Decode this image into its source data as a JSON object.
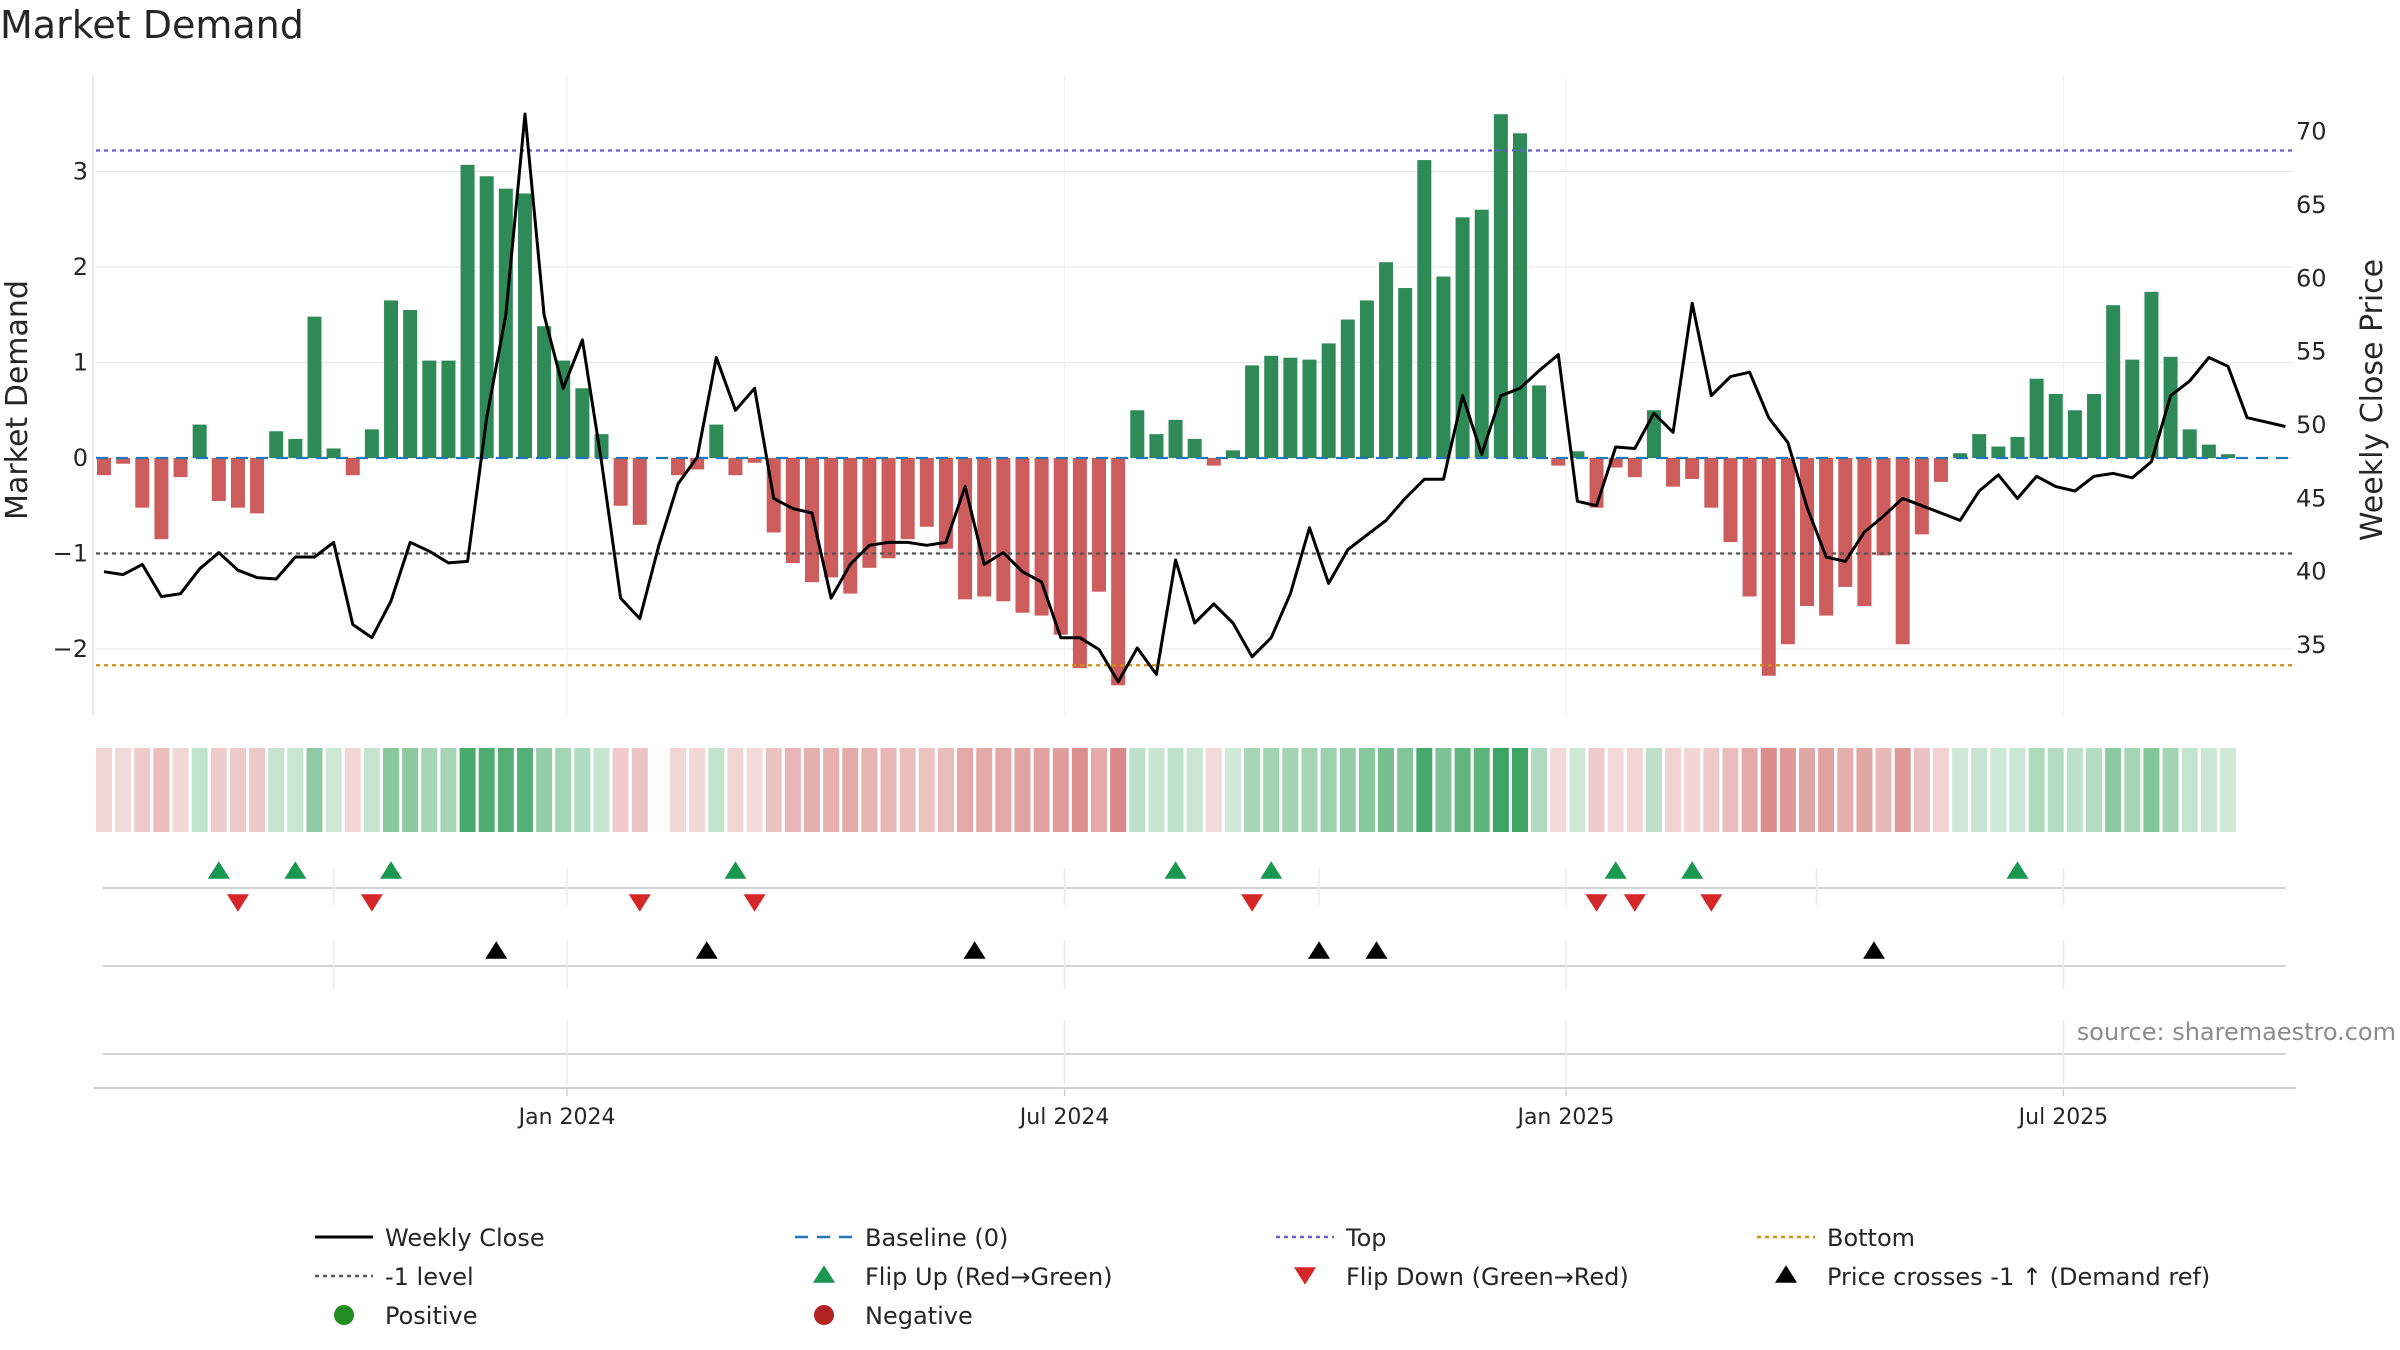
{
  "title": "Market Demand",
  "source": "source: sharemaestro.com",
  "colors": {
    "positive": "#2e8b57",
    "negative": "#cd5c5c",
    "price": "#000000",
    "baseline": "#1f77b4",
    "top": "#6a5acd",
    "bottom": "#d18f0b",
    "level": "#555555",
    "flip_up": "#1a9850",
    "flip_down": "#d62728",
    "cross": "#000000",
    "legend_pos": "#228b22",
    "legend_neg": "#b22222"
  },
  "chart_data": {
    "type": "bar",
    "title": "Market Demand",
    "ylabel": "Market Demand",
    "ylabel_right": "Weekly Close Price",
    "ylim": [
      -2.7,
      3.85
    ],
    "ylim_right": [
      31.5,
      73.0
    ],
    "yticks": [
      3,
      2,
      1,
      0,
      -1,
      -2
    ],
    "ytick_labels": [
      "3",
      "2",
      "1",
      "0",
      "−1",
      "−2"
    ],
    "yticks_right": [
      70,
      65,
      60,
      55,
      50,
      45,
      40,
      35
    ],
    "x_range": [
      0,
      115
    ],
    "x_ticks": [
      {
        "label": "Jan 2024",
        "pos": 24.2
      },
      {
        "label": "Jul 2024",
        "pos": 50.2
      },
      {
        "label": "Jan 2025",
        "pos": 76.4
      },
      {
        "label": "Jul 2025",
        "pos": 102.4
      }
    ],
    "top_level": 3.22,
    "bottom_level": -2.17,
    "minus_one_level": -1,
    "baseline": 0,
    "demand": [
      -0.18,
      -0.06,
      -0.52,
      -0.85,
      -0.2,
      0.35,
      -0.45,
      -0.52,
      -0.58,
      0.28,
      0.2,
      1.48,
      0.1,
      -0.18,
      0.3,
      1.65,
      1.55,
      1.02,
      1.02,
      3.07,
      2.95,
      2.82,
      2.77,
      1.38,
      1.02,
      0.73,
      0.25,
      -0.5,
      -0.7,
      0.0,
      -0.18,
      -0.12,
      0.35,
      -0.18,
      -0.05,
      -0.78,
      -1.1,
      -1.3,
      -1.25,
      -1.42,
      -1.15,
      -1.05,
      -0.85,
      -0.72,
      -0.95,
      -1.48,
      -1.45,
      -1.5,
      -1.62,
      -1.65,
      -1.85,
      -2.2,
      -1.4,
      -2.38,
      0.5,
      0.25,
      0.4,
      0.2,
      -0.08,
      0.08,
      0.97,
      1.07,
      1.05,
      1.03,
      1.2,
      1.45,
      1.65,
      2.05,
      1.78,
      3.12,
      1.9,
      2.52,
      2.6,
      3.6,
      3.4,
      0.76,
      -0.08,
      0.07,
      -0.52,
      -0.1,
      -0.2,
      0.5,
      -0.3,
      -0.22,
      -0.52,
      -0.88,
      -1.45,
      -2.28,
      -1.95,
      -1.55,
      -1.65,
      -1.35,
      -1.55,
      -1.02,
      -1.95,
      -0.8,
      -0.25,
      0.05,
      0.25,
      0.12,
      0.22,
      0.83,
      0.67,
      0.5,
      0.67,
      1.6,
      1.03,
      1.74,
      1.06,
      0.3,
      0.14,
      0.04
    ],
    "price": [
      40.0,
      39.8,
      40.5,
      38.3,
      38.5,
      40.2,
      41.3,
      40.1,
      39.6,
      39.5,
      41.0,
      41.0,
      42.0,
      36.4,
      35.5,
      38.0,
      42.0,
      41.4,
      40.6,
      40.7,
      50.5,
      57.5,
      71.2,
      57.5,
      52.5,
      55.8,
      47.5,
      38.2,
      36.8,
      41.8,
      46.0,
      47.8,
      54.6,
      51.0,
      52.5,
      45.0,
      44.3,
      44.0,
      38.2,
      40.5,
      41.8,
      42.0,
      42.0,
      41.8,
      42.0,
      45.8,
      40.5,
      41.3,
      40.0,
      39.3,
      35.5,
      35.5,
      34.7,
      32.5,
      34.8,
      33.0,
      40.8,
      36.5,
      37.8,
      36.5,
      34.2,
      35.5,
      38.5,
      43.0,
      39.2,
      41.5,
      42.5,
      43.5,
      45.0,
      46.3,
      46.3,
      52.0,
      48.0,
      52.0,
      52.5,
      53.7,
      54.8,
      44.8,
      44.5,
      48.5,
      48.4,
      50.8,
      49.5,
      58.3,
      52.0,
      53.3,
      53.6,
      50.5,
      48.8,
      44.4,
      41.0,
      40.7,
      42.7,
      43.8,
      45.0,
      44.5,
      44.0,
      43.5,
      45.5,
      46.6,
      45.0,
      46.5,
      45.8,
      45.5,
      46.5,
      46.7,
      46.4,
      47.5,
      52.0,
      53.0,
      54.6,
      54.0,
      50.5,
      50.2,
      49.9
    ],
    "heat_gap_index": 29,
    "flip_up": [
      6,
      10,
      15,
      33,
      56,
      61,
      79,
      83,
      100
    ],
    "flip_down": [
      7,
      14,
      28,
      34,
      60,
      78,
      80,
      84
    ],
    "price_crosses": [
      20.5,
      31.5,
      45.5,
      63.5,
      66.5,
      92.5
    ],
    "legend": [
      {
        "label": "Weekly Close",
        "style": "solid-line"
      },
      {
        "label": "Baseline (0)",
        "style": "dashed-line"
      },
      {
        "label": "Top",
        "style": "dotted-line"
      },
      {
        "label": "Bottom",
        "style": "dotted-line"
      },
      {
        "label": "-1 level",
        "style": "dotted-line"
      },
      {
        "label": "Flip Up (Red→Green)",
        "style": "triangle-up"
      },
      {
        "label": "Flip Down (Green→Red)",
        "style": "triangle-down"
      },
      {
        "label": "Price crosses -1 ↑ (Demand ref)",
        "style": "triangle-up"
      },
      {
        "label": "Positive",
        "style": "dot"
      },
      {
        "label": "Negative",
        "style": "dot"
      }
    ]
  }
}
